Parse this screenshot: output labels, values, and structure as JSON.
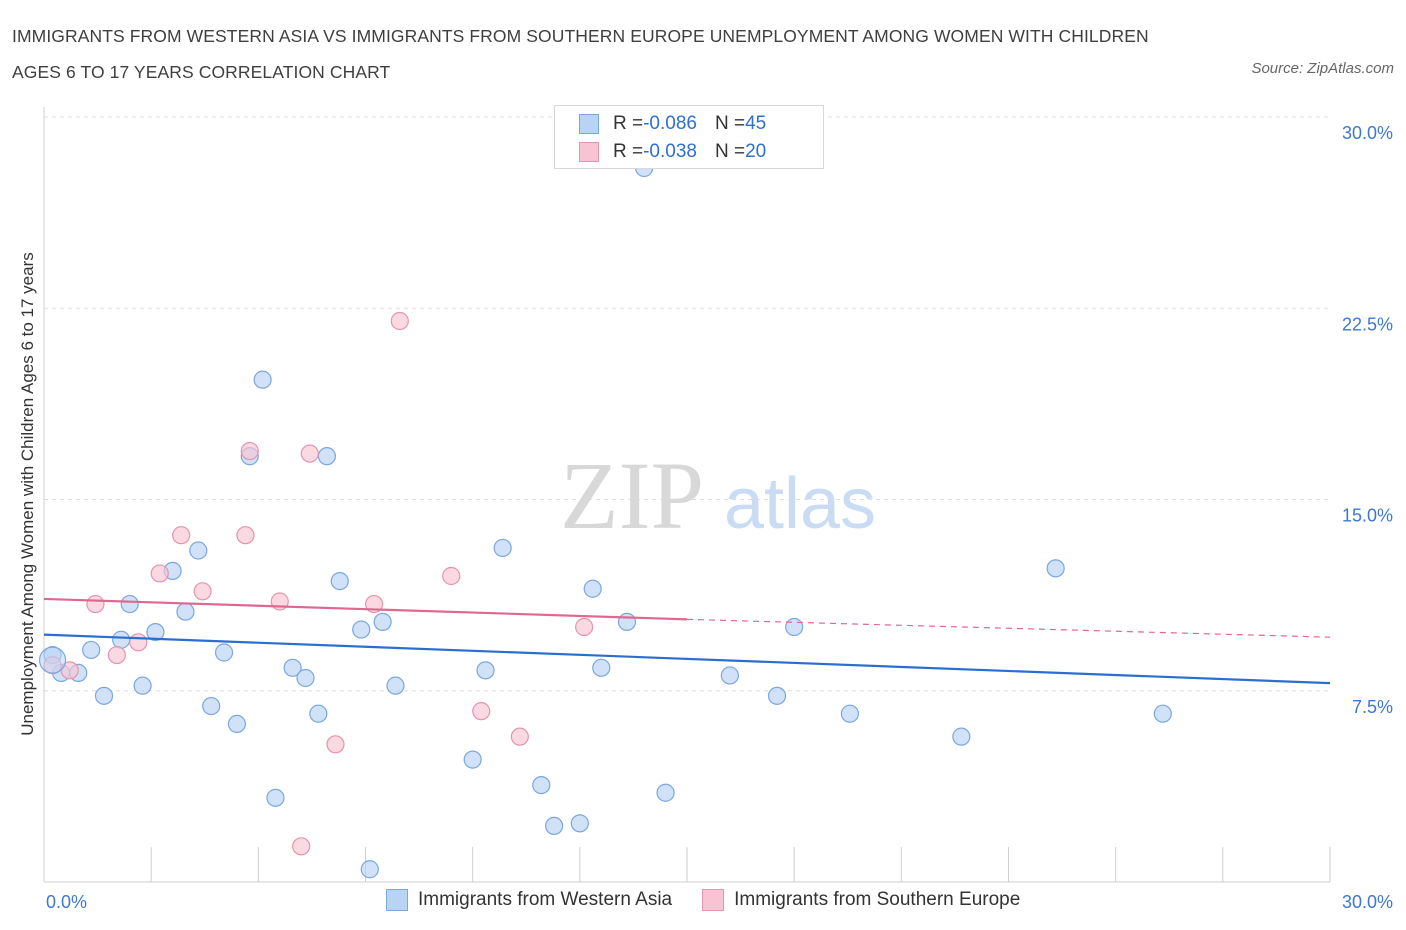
{
  "title": "IMMIGRANTS FROM WESTERN ASIA VS IMMIGRANTS FROM SOUTHERN EUROPE UNEMPLOYMENT AMONG WOMEN WITH CHILDREN AGES 6 TO 17 YEARS CORRELATION CHART",
  "source": "Source: ZipAtlas.com",
  "watermark": {
    "zip": "ZIP",
    "atlas": "atlas"
  },
  "legend": {
    "rows": [
      {
        "r_label": "R = ",
        "r_value": "-0.086",
        "n_label": "N = ",
        "n_value": "45"
      },
      {
        "r_label": "R = ",
        "r_value": "-0.038",
        "n_label": "N = ",
        "n_value": "20"
      }
    ]
  },
  "colors": {
    "western_asia_fill": "#b9d3f5",
    "western_asia_stroke": "#7aa7e0",
    "western_asia_line": "#2a6fd0",
    "southern_europe_fill": "#f8c4d4",
    "southern_europe_stroke": "#e893ad",
    "southern_europe_line": "#e0688f",
    "tick_label": "#3d78d0",
    "grid": "#dedede"
  },
  "chart_data": {
    "type": "scatter",
    "title": "IMMIGRANTS FROM WESTERN ASIA VS IMMIGRANTS FROM SOUTHERN EUROPE UNEMPLOYMENT AMONG WOMEN WITH CHILDREN AGES 6 TO 17 YEARS CORRELATION CHART",
    "xlabel": "",
    "ylabel": "Unemployment Among Women with Children Ages 6 to 17 years",
    "xlim": [
      0,
      30
    ],
    "ylim": [
      0,
      30
    ],
    "x_tick_labels": [
      {
        "value": 0,
        "label": "0.0%"
      },
      {
        "value": 30,
        "label": "30.0%"
      }
    ],
    "y_tick_labels": [
      {
        "value": 7.5,
        "label": "7.5%"
      },
      {
        "value": 15,
        "label": "15.0%"
      },
      {
        "value": 22.5,
        "label": "22.5%"
      },
      {
        "value": 30,
        "label": "30.0%"
      }
    ],
    "grid": true,
    "legend_position": "bottom",
    "series": [
      {
        "name": "Immigrants from Western Asia",
        "color": "#7aa7e0",
        "points": [
          [
            0.2,
            8.9
          ],
          [
            0.4,
            8.2
          ],
          [
            0.8,
            8.2
          ],
          [
            1.1,
            9.1
          ],
          [
            1.4,
            7.3
          ],
          [
            1.8,
            9.5
          ],
          [
            2.0,
            10.9
          ],
          [
            2.3,
            7.7
          ],
          [
            2.6,
            9.8
          ],
          [
            3.0,
            12.2
          ],
          [
            3.3,
            10.6
          ],
          [
            3.6,
            13.0
          ],
          [
            3.9,
            6.9
          ],
          [
            4.2,
            9.0
          ],
          [
            4.5,
            6.2
          ],
          [
            4.8,
            16.7
          ],
          [
            5.1,
            19.7
          ],
          [
            5.4,
            3.3
          ],
          [
            5.8,
            8.4
          ],
          [
            6.1,
            8.0
          ],
          [
            6.4,
            6.6
          ],
          [
            6.6,
            16.7
          ],
          [
            6.9,
            11.8
          ],
          [
            7.4,
            9.9
          ],
          [
            7.6,
            0.5
          ],
          [
            7.9,
            10.2
          ],
          [
            8.2,
            7.7
          ],
          [
            10.0,
            4.8
          ],
          [
            10.3,
            8.3
          ],
          [
            10.7,
            13.1
          ],
          [
            11.6,
            3.8
          ],
          [
            11.9,
            2.2
          ],
          [
            12.5,
            2.3
          ],
          [
            12.8,
            11.5
          ],
          [
            13.0,
            8.4
          ],
          [
            13.6,
            10.2
          ],
          [
            14.0,
            28.0
          ],
          [
            14.5,
            3.5
          ],
          [
            16.0,
            8.1
          ],
          [
            17.1,
            7.3
          ],
          [
            17.5,
            10.0
          ],
          [
            18.8,
            6.6
          ],
          [
            21.4,
            5.7
          ],
          [
            23.6,
            12.3
          ],
          [
            26.1,
            6.6
          ]
        ]
      },
      {
        "name": "Immigrants from Southern Europe",
        "color": "#e893ad",
        "points": [
          [
            0.2,
            8.5
          ],
          [
            0.6,
            8.3
          ],
          [
            1.2,
            10.9
          ],
          [
            1.7,
            8.9
          ],
          [
            2.2,
            9.4
          ],
          [
            2.7,
            12.1
          ],
          [
            3.2,
            13.6
          ],
          [
            3.7,
            11.4
          ],
          [
            4.7,
            13.6
          ],
          [
            4.8,
            16.9
          ],
          [
            5.5,
            11.0
          ],
          [
            6.0,
            1.4
          ],
          [
            6.2,
            16.8
          ],
          [
            6.8,
            5.4
          ],
          [
            7.7,
            10.9
          ],
          [
            8.3,
            22.0
          ],
          [
            9.5,
            12.0
          ],
          [
            10.2,
            6.7
          ],
          [
            11.1,
            5.7
          ],
          [
            12.6,
            10.0
          ]
        ]
      }
    ],
    "trend_lines": [
      {
        "series": "Immigrants from Western Asia",
        "x": [
          0,
          30
        ],
        "y": [
          9.7,
          7.8
        ]
      },
      {
        "series": "Immigrants from Southern Europe",
        "x": [
          0,
          15
        ],
        "y": [
          11.1,
          10.3
        ],
        "dashed_extension_to": [
          30,
          9.6
        ]
      }
    ]
  },
  "bottom_legend": [
    {
      "label": "Immigrants from Western Asia"
    },
    {
      "label": "Immigrants from Southern Europe"
    }
  ]
}
